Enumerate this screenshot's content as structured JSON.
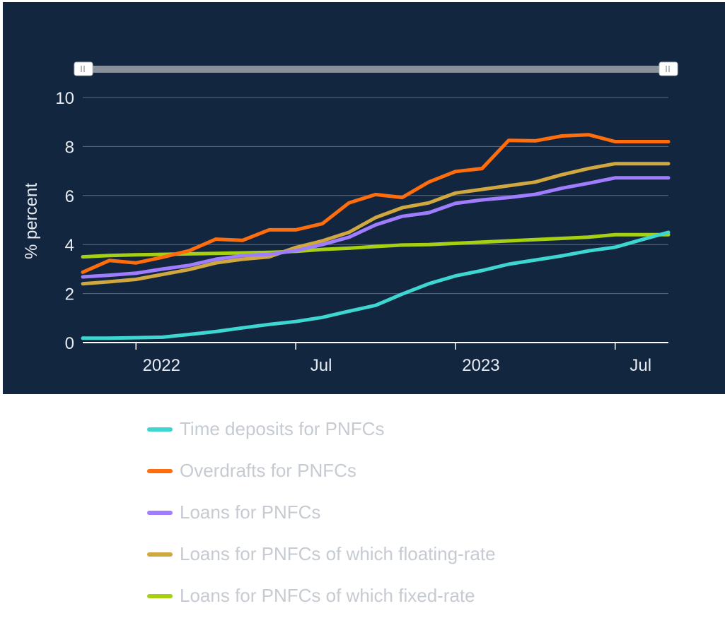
{
  "chart_data": {
    "type": "line",
    "ylabel": "% percent",
    "ylim": [
      0,
      10
    ],
    "y_ticks": [
      "0",
      "2",
      "4",
      "6",
      "8",
      "10"
    ],
    "x_ticks": [
      {
        "label": "2022",
        "date": "2022-01"
      },
      {
        "label": "Jul",
        "date": "2022-07"
      },
      {
        "label": "2023",
        "date": "2023-01"
      },
      {
        "label": "Jul",
        "date": "2023-07"
      }
    ],
    "x": [
      "2021-11",
      "2021-12",
      "2022-01",
      "2022-02",
      "2022-03",
      "2022-04",
      "2022-05",
      "2022-06",
      "2022-07",
      "2022-08",
      "2022-09",
      "2022-10",
      "2022-11",
      "2022-12",
      "2023-01",
      "2023-02",
      "2023-03",
      "2023-04",
      "2023-05",
      "2023-06",
      "2023-07",
      "2023-08",
      "2023-09"
    ],
    "grid": true,
    "legend_position": "bottom",
    "series": [
      {
        "name": "Time deposits for PNFCs",
        "color": "#3dd6d0",
        "values": [
          0.18,
          0.18,
          0.2,
          0.22,
          0.33,
          0.45,
          0.6,
          0.74,
          0.86,
          1.03,
          1.28,
          1.52,
          1.98,
          2.4,
          2.72,
          2.94,
          3.2,
          3.37,
          3.54,
          3.74,
          3.89,
          4.2,
          4.5
        ]
      },
      {
        "name": "Overdrafts for PNFCs",
        "color": "#ff6d0d",
        "values": [
          2.87,
          3.35,
          3.25,
          3.48,
          3.75,
          4.22,
          4.17,
          4.6,
          4.6,
          4.85,
          5.7,
          6.04,
          5.92,
          6.55,
          6.98,
          7.1,
          8.25,
          8.23,
          8.43,
          8.48,
          8.2,
          8.2,
          8.2
        ]
      },
      {
        "name": "Loans for PNFCs",
        "color": "#a07dff",
        "values": [
          2.68,
          2.75,
          2.83,
          3.0,
          3.15,
          3.4,
          3.55,
          3.6,
          3.75,
          4.0,
          4.3,
          4.8,
          5.15,
          5.3,
          5.68,
          5.82,
          5.92,
          6.05,
          6.3,
          6.5,
          6.72,
          6.72,
          6.72
        ]
      },
      {
        "name": "Loans for PNFCs of which floating-rate",
        "color": "#d1a73f",
        "values": [
          2.4,
          2.48,
          2.58,
          2.78,
          2.98,
          3.25,
          3.4,
          3.5,
          3.88,
          4.15,
          4.5,
          5.1,
          5.5,
          5.7,
          6.1,
          6.25,
          6.4,
          6.55,
          6.85,
          7.1,
          7.3,
          7.3,
          7.3
        ]
      },
      {
        "name": "Loans for PNFCs of which fixed-rate",
        "color": "#a6d112",
        "values": [
          3.5,
          3.55,
          3.58,
          3.6,
          3.62,
          3.64,
          3.66,
          3.68,
          3.72,
          3.8,
          3.85,
          3.92,
          3.98,
          4.0,
          4.05,
          4.1,
          4.15,
          4.2,
          4.25,
          4.3,
          4.4,
          4.4,
          4.4
        ]
      }
    ]
  }
}
